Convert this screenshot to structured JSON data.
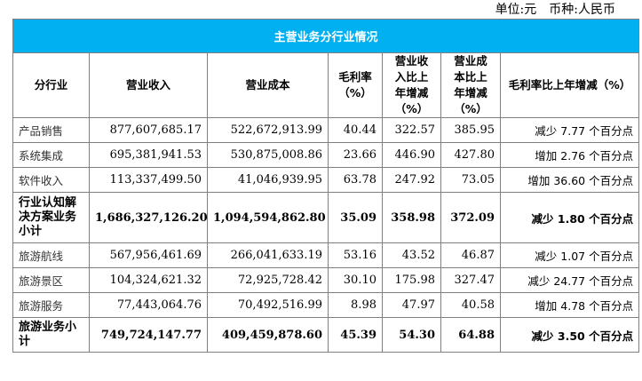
{
  "unit": {
    "unit_label": "单位:元",
    "currency_label": "币种:人民币"
  },
  "table": {
    "title": "主营业务分行业情况",
    "headers": {
      "industry": "分行业",
      "revenue": "营业收入",
      "cost": "营业成本",
      "gross_margin": "毛利率（%）",
      "revenue_yoy": "营业收入比上年增减（%）",
      "cost_yoy": "营业成本比上年增减（%）",
      "margin_yoy": "毛利率比上年增减（%）"
    },
    "rows": [
      {
        "industry": "产品销售",
        "revenue": "877,607,685.17",
        "cost": "522,672,913.99",
        "gross_margin": "40.44",
        "revenue_yoy": "322.57",
        "cost_yoy": "385.95",
        "margin_yoy": "减少 7.77 个百分点"
      },
      {
        "industry": "系统集成",
        "revenue": "695,381,941.53",
        "cost": "530,875,008.86",
        "gross_margin": "23.66",
        "revenue_yoy": "446.90",
        "cost_yoy": "427.80",
        "margin_yoy": "增加 2.76 个百分点"
      },
      {
        "industry": "软件收入",
        "revenue": "113,337,499.50",
        "cost": "41,046,939.95",
        "gross_margin": "63.78",
        "revenue_yoy": "247.92",
        "cost_yoy": "73.05",
        "margin_yoy": "增加 36.60 个百分点"
      },
      {
        "industry": "行业认知解决方案业务小计",
        "revenue": "1,686,327,126.20",
        "cost": "1,094,594,862.80",
        "gross_margin": "35.09",
        "revenue_yoy": "358.98",
        "cost_yoy": "372.09",
        "margin_yoy": "减少 1.80 个百分点"
      },
      {
        "industry": "旅游航线",
        "revenue": "567,956,461.69",
        "cost": "266,041,633.19",
        "gross_margin": "53.16",
        "revenue_yoy": "43.52",
        "cost_yoy": "46.87",
        "margin_yoy": "减少 1.07 个百分点"
      },
      {
        "industry": "旅游景区",
        "revenue": "104,324,621.32",
        "cost": "72,925,728.42",
        "gross_margin": "30.10",
        "revenue_yoy": "175.98",
        "cost_yoy": "327.47",
        "margin_yoy": "减少 24.77 个百分点"
      },
      {
        "industry": "旅游服务",
        "revenue": "77,443,064.76",
        "cost": "70,492,516.99",
        "gross_margin": "8.98",
        "revenue_yoy": "47.97",
        "cost_yoy": "40.58",
        "margin_yoy": "增加 4.78 个百分点"
      },
      {
        "industry": "旅游业务小计",
        "revenue": "749,724,147.77",
        "cost": "409,459,878.60",
        "gross_margin": "45.39",
        "revenue_yoy": "54.30",
        "cost_yoy": "64.88",
        "margin_yoy": "减少 3.50 个百分点"
      }
    ]
  }
}
